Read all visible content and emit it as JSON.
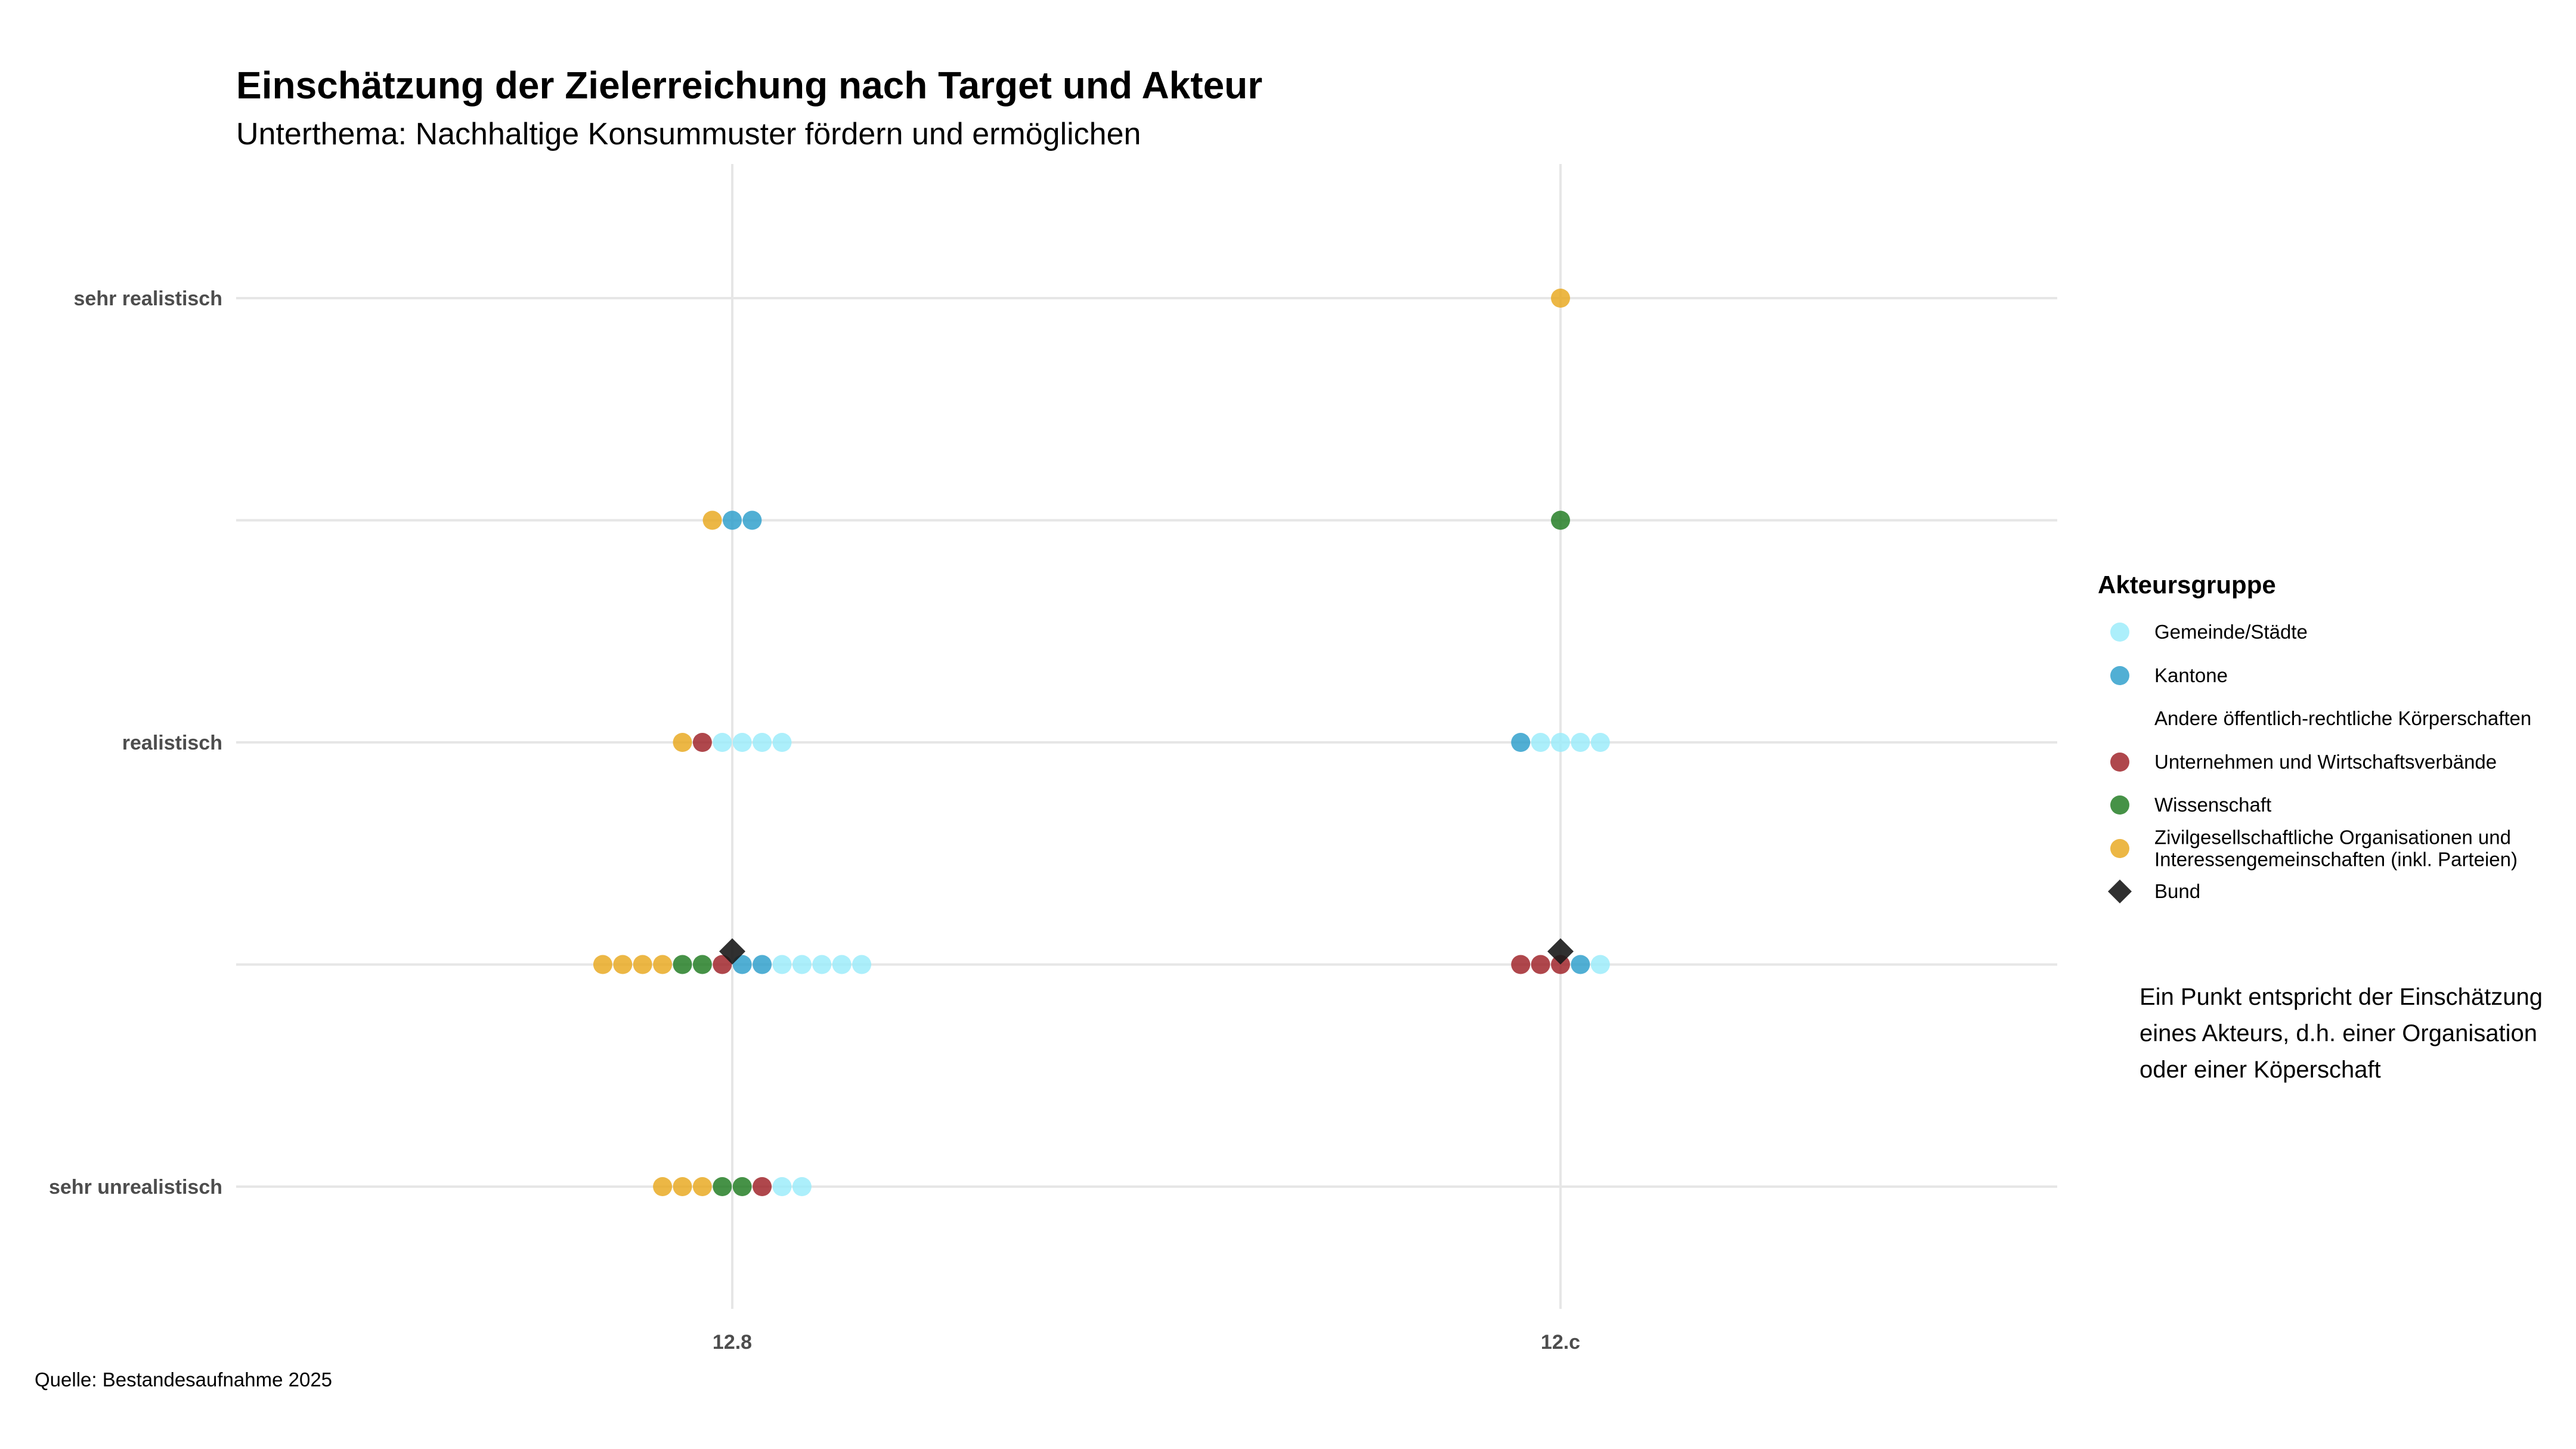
{
  "chart_data": {
    "type": "scatter",
    "title": "Einschätzung der Zielerreichung nach Target und Akteur",
    "subtitle": "Unterthema: Nachhaltige Konsummuster fördern und ermöglichen",
    "caption": "Quelle: Bestandesaufnahme 2025",
    "note_lines": [
      "Ein Punkt entspricht der Einschätzung",
      "eines Akteurs, d.h. einer Organisation",
      "oder einer Köperschaft"
    ],
    "categories": [
      "12.8",
      "12.c"
    ],
    "y_levels": [
      1,
      2,
      3,
      4,
      5
    ],
    "y_tick_labels": [
      {
        "level": 5,
        "label": "sehr realistisch"
      },
      {
        "level": 3,
        "label": "realistisch"
      },
      {
        "level": 1,
        "label": "sehr unrealistisch"
      }
    ],
    "grid": true,
    "legend": {
      "title": "Akteursgruppe",
      "position": "right",
      "items": [
        {
          "key": "gemeinde",
          "label_lines": [
            "Gemeinde/Städte"
          ],
          "color": "#9AEBFA",
          "shape": "circle"
        },
        {
          "key": "kantone",
          "label_lines": [
            "Kantone"
          ],
          "color": "#2B9ECB",
          "shape": "circle"
        },
        {
          "key": "andere",
          "label_lines": [
            "Andere öffentlich-rechtliche Körperschaften"
          ],
          "color": null,
          "shape": "circle"
        },
        {
          "key": "unternehmen",
          "label_lines": [
            "Unternehmen und Wirtschaftsverbände"
          ],
          "color": "#9E1F24",
          "shape": "circle"
        },
        {
          "key": "wissenschaft",
          "label_lines": [
            "Wissenschaft"
          ],
          "color": "#1D7A1F",
          "shape": "circle"
        },
        {
          "key": "zivil",
          "label_lines": [
            "Zivilgesellschaftliche Organisationen und",
            "Interessengemeinschaften (inkl. Parteien)"
          ],
          "color": "#E8A71C",
          "shape": "circle"
        },
        {
          "key": "bund",
          "label_lines": [
            "Bund"
          ],
          "color": "#1a1a1a",
          "shape": "diamond"
        }
      ]
    },
    "points": [
      {
        "category": "12.8",
        "level": 5,
        "groups": []
      },
      {
        "category": "12.8",
        "level": 4,
        "groups": [
          "zivil",
          "kantone",
          "kantone"
        ]
      },
      {
        "category": "12.8",
        "level": 3,
        "groups": [
          "zivil",
          "unternehmen",
          "gemeinde",
          "gemeinde",
          "gemeinde",
          "gemeinde"
        ]
      },
      {
        "category": "12.8",
        "level": 2,
        "groups": [
          "zivil",
          "zivil",
          "zivil",
          "zivil",
          "wissenschaft",
          "wissenschaft",
          "unternehmen",
          "kantone",
          "kantone",
          "gemeinde",
          "gemeinde",
          "gemeinde",
          "gemeinde",
          "gemeinde"
        ]
      },
      {
        "category": "12.8",
        "level": 1,
        "groups": [
          "zivil",
          "zivil",
          "zivil",
          "wissenschaft",
          "wissenschaft",
          "unternehmen",
          "gemeinde",
          "gemeinde"
        ]
      },
      {
        "category": "12.c",
        "level": 5,
        "groups": [
          "zivil"
        ]
      },
      {
        "category": "12.c",
        "level": 4,
        "groups": [
          "wissenschaft"
        ]
      },
      {
        "category": "12.c",
        "level": 3,
        "groups": [
          "kantone",
          "gemeinde",
          "gemeinde",
          "gemeinde",
          "gemeinde"
        ]
      },
      {
        "category": "12.c",
        "level": 2,
        "groups": [
          "unternehmen",
          "unternehmen",
          "unternehmen",
          "kantone",
          "gemeinde"
        ]
      },
      {
        "category": "12.c",
        "level": 1,
        "groups": []
      }
    ],
    "bund": [
      {
        "category": "12.8",
        "level": 2
      },
      {
        "category": "12.c",
        "level": 2
      }
    ]
  }
}
